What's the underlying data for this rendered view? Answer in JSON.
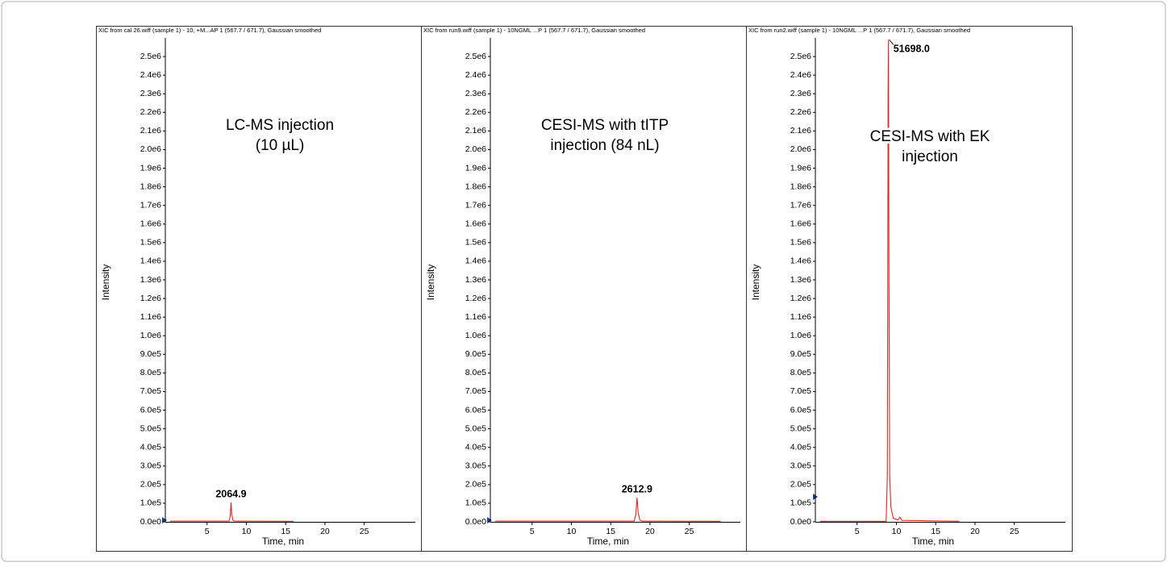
{
  "chart_data": [
    {
      "type": "line",
      "title": "XIC from cal 26.wiff (sample 1) - 10, +M...AP 1 (567.7 / 671.7), Gaussian smoothed",
      "annotation": [
        "LC-MS injection",
        "(10 µL)"
      ],
      "peak_label": "2064.9",
      "xlabel": "Time, min",
      "ylabel": "Intensity",
      "color": "#e3261f",
      "x": [
        0.3,
        7.8,
        7.95,
        8.05,
        8.15,
        8.3,
        8.5,
        16.0
      ],
      "values": [
        4000,
        4000,
        30000,
        104000,
        40000,
        8000,
        4000,
        3000
      ],
      "xlim": [
        0,
        31.5
      ],
      "xticks": [
        5,
        10,
        15,
        20,
        25
      ],
      "ylim": [
        0,
        2600000
      ],
      "yticks": [
        {
          "value": 0,
          "label": "0.0e0"
        },
        {
          "value": 100000,
          "label": "1.0e5"
        },
        {
          "value": 200000,
          "label": "2.0e5"
        },
        {
          "value": 300000,
          "label": "3.0e5"
        },
        {
          "value": 400000,
          "label": "4.0e5"
        },
        {
          "value": 500000,
          "label": "5.0e5"
        },
        {
          "value": 600000,
          "label": "6.0e5"
        },
        {
          "value": 700000,
          "label": "7.0e5"
        },
        {
          "value": 800000,
          "label": "8.0e5"
        },
        {
          "value": 900000,
          "label": "9.0e5"
        },
        {
          "value": 1000000,
          "label": "1.0e6"
        },
        {
          "value": 1100000,
          "label": "1.1e6"
        },
        {
          "value": 1200000,
          "label": "1.2e6"
        },
        {
          "value": 1300000,
          "label": "1.3e6"
        },
        {
          "value": 1400000,
          "label": "1.4e6"
        },
        {
          "value": 1500000,
          "label": "1.5e6"
        },
        {
          "value": 1600000,
          "label": "1.6e6"
        },
        {
          "value": 1700000,
          "label": "1.7e6"
        },
        {
          "value": 1800000,
          "label": "1.8e6"
        },
        {
          "value": 1900000,
          "label": "1.9e6"
        },
        {
          "value": 2000000,
          "label": "2.0e6"
        },
        {
          "value": 2100000,
          "label": "2.1e6"
        },
        {
          "value": 2200000,
          "label": "2.2e6"
        },
        {
          "value": 2300000,
          "label": "2.3e6"
        },
        {
          "value": 2400000,
          "label": "2.4e6"
        },
        {
          "value": 2500000,
          "label": "2.5e6"
        }
      ]
    },
    {
      "type": "line",
      "title": "XIC from run9.wiff (sample 1) - 10NGML ...P 1 (567.7 / 671.7), Gaussian smoothed",
      "annotation": [
        "CESI-MS with tITP",
        "injection (84 nL)"
      ],
      "peak_label": "2612.9",
      "xlabel": "Time, min",
      "ylabel": "Intensity",
      "color": "#e3261f",
      "x": [
        0.3,
        18.0,
        18.2,
        18.35,
        18.5,
        18.7,
        19.0,
        29.0
      ],
      "values": [
        4000,
        4000,
        40000,
        130000,
        50000,
        10000,
        4000,
        3000
      ],
      "xlim": [
        0,
        31.5
      ],
      "xticks": [
        5,
        10,
        15,
        20,
        25
      ],
      "ylim": [
        0,
        2600000
      ],
      "yticks": [
        {
          "value": 0,
          "label": "0.0e0"
        },
        {
          "value": 100000,
          "label": "1.0e5"
        },
        {
          "value": 200000,
          "label": "2.0e5"
        },
        {
          "value": 300000,
          "label": "3.0e5"
        },
        {
          "value": 400000,
          "label": "4.0e5"
        },
        {
          "value": 500000,
          "label": "5.0e5"
        },
        {
          "value": 600000,
          "label": "6.0e5"
        },
        {
          "value": 700000,
          "label": "7.0e5"
        },
        {
          "value": 800000,
          "label": "8.0e5"
        },
        {
          "value": 900000,
          "label": "9.0e5"
        },
        {
          "value": 1000000,
          "label": "1.0e6"
        },
        {
          "value": 1100000,
          "label": "1.1e6"
        },
        {
          "value": 1200000,
          "label": "1.2e6"
        },
        {
          "value": 1300000,
          "label": "1.3e6"
        },
        {
          "value": 1400000,
          "label": "1.4e6"
        },
        {
          "value": 1500000,
          "label": "1.5e6"
        },
        {
          "value": 1600000,
          "label": "1.6e6"
        },
        {
          "value": 1700000,
          "label": "1.7e6"
        },
        {
          "value": 1800000,
          "label": "1.8e6"
        },
        {
          "value": 1900000,
          "label": "1.9e6"
        },
        {
          "value": 2000000,
          "label": "2.0e6"
        },
        {
          "value": 2100000,
          "label": "2.1e6"
        },
        {
          "value": 2200000,
          "label": "2.2e6"
        },
        {
          "value": 2300000,
          "label": "2.3e6"
        },
        {
          "value": 2400000,
          "label": "2.4e6"
        },
        {
          "value": 2500000,
          "label": "2.5e6"
        }
      ]
    },
    {
      "type": "line",
      "title": "XIC from run2.wiff (sample 1) - 10NGML ...P 1 (567.7 / 671.7), Gaussian smoothed",
      "annotation": [
        "CESI-MS with EK",
        "injection"
      ],
      "peak_label": "51698.0",
      "xlabel": "Time, min",
      "ylabel": "Intensity",
      "color": "#e3261f",
      "x": [
        0.3,
        8.7,
        8.85,
        8.95,
        9.0,
        9.05,
        9.15,
        9.3,
        9.6,
        10.2,
        10.45,
        10.7,
        18.0
      ],
      "values": [
        3000,
        3000,
        250000,
        2300000,
        2590000,
        1400000,
        250000,
        80000,
        20000,
        10000,
        25000,
        8000,
        3000
      ],
      "xlim": [
        0,
        31.5
      ],
      "xticks": [
        5,
        10,
        15,
        20,
        25
      ],
      "ylim": [
        0,
        2600000
      ],
      "yticks": [
        {
          "value": 0,
          "label": "0.0e0"
        },
        {
          "value": 100000,
          "label": "1.0e5"
        },
        {
          "value": 200000,
          "label": "2.0e5"
        },
        {
          "value": 300000,
          "label": "3.0e5"
        },
        {
          "value": 400000,
          "label": "4.0e5"
        },
        {
          "value": 500000,
          "label": "5.0e5"
        },
        {
          "value": 600000,
          "label": "6.0e5"
        },
        {
          "value": 700000,
          "label": "7.0e5"
        },
        {
          "value": 800000,
          "label": "8.0e5"
        },
        {
          "value": 900000,
          "label": "9.0e5"
        },
        {
          "value": 1000000,
          "label": "1.0e6"
        },
        {
          "value": 1100000,
          "label": "1.1e6"
        },
        {
          "value": 1200000,
          "label": "1.2e6"
        },
        {
          "value": 1300000,
          "label": "1.3e6"
        },
        {
          "value": 1400000,
          "label": "1.4e6"
        },
        {
          "value": 1500000,
          "label": "1.5e6"
        },
        {
          "value": 1600000,
          "label": "1.6e6"
        },
        {
          "value": 1700000,
          "label": "1.7e6"
        },
        {
          "value": 1800000,
          "label": "1.8e6"
        },
        {
          "value": 1900000,
          "label": "1.9e6"
        },
        {
          "value": 2000000,
          "label": "2.0e6"
        },
        {
          "value": 2100000,
          "label": "2.1e6"
        },
        {
          "value": 2200000,
          "label": "2.2e6"
        },
        {
          "value": 2300000,
          "label": "2.3e6"
        },
        {
          "value": 2400000,
          "label": "2.4e6"
        },
        {
          "value": 2500000,
          "label": "2.5e6"
        }
      ]
    }
  ]
}
